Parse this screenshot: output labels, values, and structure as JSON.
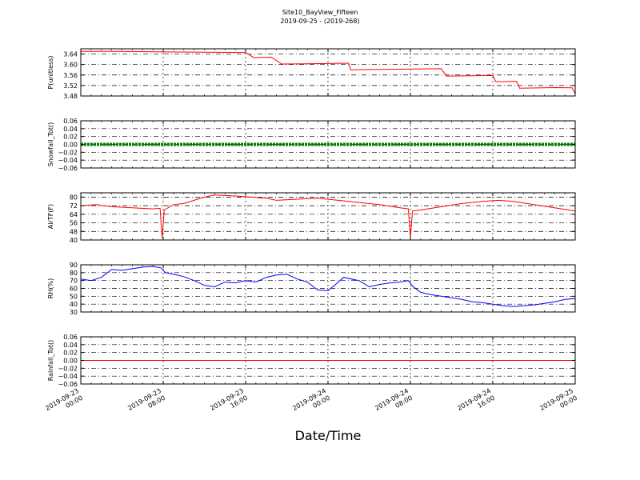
{
  "figure": {
    "title": "Site10_BayView_Fifteen",
    "subtitle": "2019-09-25 - (2019-268)",
    "xlabel": "Date/Time"
  },
  "chart_data": [
    {
      "type": "line",
      "ylabel": "P(unitless)",
      "color": "#ff0000",
      "ylim": [
        3.48,
        3.66
      ],
      "yticks": [
        "3.64",
        "3.60",
        "3.56",
        "3.52",
        "3.48"
      ],
      "ytick_values": [
        3.64,
        3.6,
        3.56,
        3.52,
        3.48
      ],
      "xlim": [
        0,
        48
      ],
      "x": [
        0,
        4,
        8,
        12,
        16,
        16.8,
        18.5,
        19.5,
        24,
        26,
        26.2,
        30,
        35,
        35.5,
        40,
        40.3,
        42.3,
        42.6,
        46,
        47.7,
        48
      ],
      "y": [
        3.65,
        3.65,
        3.648,
        3.647,
        3.646,
        3.626,
        3.628,
        3.602,
        3.604,
        3.605,
        3.58,
        3.582,
        3.584,
        3.556,
        3.558,
        3.534,
        3.536,
        3.51,
        3.512,
        3.511,
        3.489
      ]
    },
    {
      "type": "line",
      "ylabel": "Snowfall_Tot()",
      "color": "#008000",
      "marker": "dot",
      "ylim": [
        -0.06,
        0.06
      ],
      "yticks": [
        "0.06",
        "0.04",
        "0.02",
        "0.00",
        "−0.02",
        "−0.04",
        "−0.06"
      ],
      "ytick_values": [
        0.06,
        0.04,
        0.02,
        0.0,
        -0.02,
        -0.04,
        -0.06
      ],
      "xlim": [
        0,
        48
      ],
      "x": [
        0,
        48
      ],
      "y": [
        0,
        0
      ]
    },
    {
      "type": "line",
      "ylabel": "AirTF(F)",
      "color": "#ff0000",
      "ylim": [
        40,
        84
      ],
      "yticks": [
        "80",
        "72",
        "64",
        "56",
        "48",
        "40"
      ],
      "ytick_values": [
        80,
        72,
        64,
        56,
        48,
        40
      ],
      "xlim": [
        0,
        48
      ],
      "x": [
        0,
        1.5,
        3,
        5,
        7,
        7.7,
        7.8,
        7.9,
        8.1,
        9,
        10,
        11,
        12,
        13,
        15,
        16.5,
        18,
        19,
        21,
        23,
        25,
        27,
        29,
        31,
        31.8,
        32,
        32.2,
        33,
        35,
        37,
        39,
        40.5,
        42,
        44,
        46,
        48
      ],
      "y": [
        72,
        73,
        71,
        70,
        69,
        69.5,
        55,
        42,
        68,
        73,
        74,
        77,
        80,
        82,
        81,
        80,
        79,
        77,
        78,
        79,
        77,
        75,
        73,
        70,
        69,
        42,
        67,
        68,
        71,
        74,
        76,
        77,
        76,
        73,
        70,
        67
      ]
    },
    {
      "type": "line",
      "ylabel": "RH(%)",
      "color": "#0000ff",
      "ylim": [
        30,
        90
      ],
      "yticks": [
        "90",
        "80",
        "70",
        "60",
        "50",
        "40",
        "30"
      ],
      "ytick_values": [
        90,
        80,
        70,
        60,
        50,
        40,
        30
      ],
      "xlim": [
        0,
        48
      ],
      "x": [
        0,
        1,
        2,
        3,
        4,
        5,
        6,
        7,
        7.8,
        8.2,
        9,
        10,
        11,
        12,
        13,
        14,
        15,
        16,
        17,
        18,
        19,
        20,
        21,
        22,
        23,
        24,
        25,
        25.5,
        27,
        28,
        29,
        30,
        31,
        31.8,
        32.2,
        33,
        34,
        35,
        36,
        37,
        38,
        39,
        40,
        41,
        42,
        43,
        44,
        45,
        46,
        47,
        48
      ],
      "y": [
        72,
        70,
        74,
        84,
        83,
        85,
        87,
        88,
        86,
        80,
        78,
        75,
        70,
        64,
        62,
        68,
        67,
        70,
        68,
        74,
        77,
        78,
        72,
        68,
        58,
        57,
        68,
        74,
        70,
        62,
        65,
        67,
        68,
        70,
        63,
        55,
        52,
        50,
        48,
        46,
        43,
        42,
        40,
        38,
        37,
        38,
        39,
        41,
        43,
        46,
        47
      ]
    },
    {
      "type": "line",
      "ylabel": "Rainfall_Tot()",
      "color": "#ff0000",
      "ylim": [
        -0.06,
        0.06
      ],
      "yticks": [
        "0.06",
        "0.04",
        "0.02",
        "0.00",
        "−0.02",
        "−0.04",
        "−0.06"
      ],
      "ytick_values": [
        0.06,
        0.04,
        0.02,
        0.0,
        -0.02,
        -0.04,
        -0.06
      ],
      "xlim": [
        0,
        48
      ],
      "x": [
        0,
        48
      ],
      "y": [
        0,
        0
      ]
    }
  ],
  "xaxis": {
    "tick_positions": [
      0,
      8,
      16,
      24,
      32,
      40,
      48
    ],
    "tick_labels": [
      [
        "2019-09-23",
        "00:00"
      ],
      [
        "2019-09-23",
        "08:00"
      ],
      [
        "2019-09-23",
        "16:00"
      ],
      [
        "2019-09-24",
        "00:00"
      ],
      [
        "2019-09-24",
        "08:00"
      ],
      [
        "2019-09-24",
        "16:00"
      ],
      [
        "2019-09-25",
        "00:00"
      ]
    ]
  }
}
